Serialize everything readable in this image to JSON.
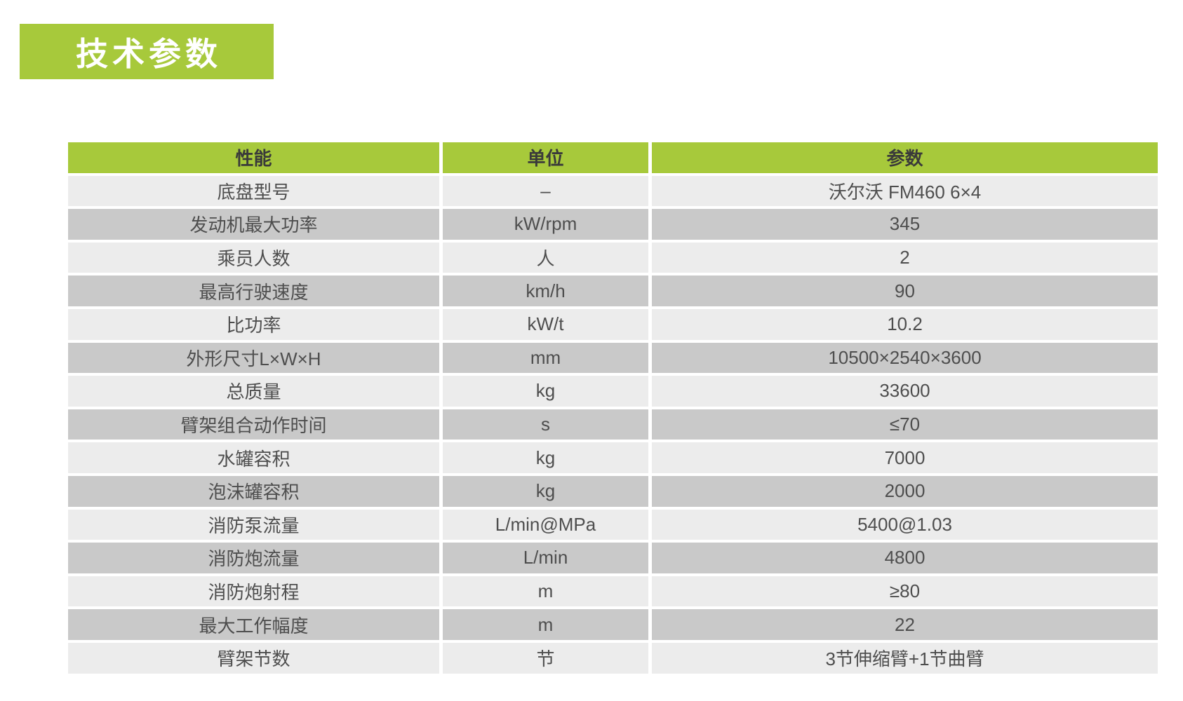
{
  "title": {
    "text": "技术参数"
  },
  "colors": {
    "green": "#a7c93b",
    "row_light": "#ececec",
    "row_dark": "#c9c9c9",
    "header_text": "#3a3a3a",
    "body_text": "#4e4e4e",
    "title_text": "#ffffff"
  },
  "table": {
    "headers": [
      "性能",
      "单位",
      "参数"
    ],
    "rows": [
      {
        "perf": "底盘型号",
        "unit": "–",
        "value": "沃尔沃 FM460 6×4"
      },
      {
        "perf": "发动机最大功率",
        "unit": "kW/rpm",
        "value": "345"
      },
      {
        "perf": "乘员人数",
        "unit": "人",
        "value": "2"
      },
      {
        "perf": "最高行驶速度",
        "unit": "km/h",
        "value": "90"
      },
      {
        "perf": "比功率",
        "unit": "kW/t",
        "value": "10.2"
      },
      {
        "perf": "外形尺寸L×W×H",
        "unit": "mm",
        "value": "10500×2540×3600"
      },
      {
        "perf": "总质量",
        "unit": "kg",
        "value": "33600"
      },
      {
        "perf": "臂架组合动作时间",
        "unit": "s",
        "value": "≤70"
      },
      {
        "perf": "水罐容积",
        "unit": "kg",
        "value": "7000"
      },
      {
        "perf": "泡沫罐容积",
        "unit": "kg",
        "value": "2000"
      },
      {
        "perf": "消防泵流量",
        "unit": "L/min@MPa",
        "value": "5400@1.03"
      },
      {
        "perf": "消防炮流量",
        "unit": "L/min",
        "value": "4800"
      },
      {
        "perf": "消防炮射程",
        "unit": "m",
        "value": "≥80"
      },
      {
        "perf": "最大工作幅度",
        "unit": "m",
        "value": "22"
      },
      {
        "perf": "臂架节数",
        "unit": "节",
        "value": "3节伸缩臂+1节曲臂"
      }
    ]
  }
}
